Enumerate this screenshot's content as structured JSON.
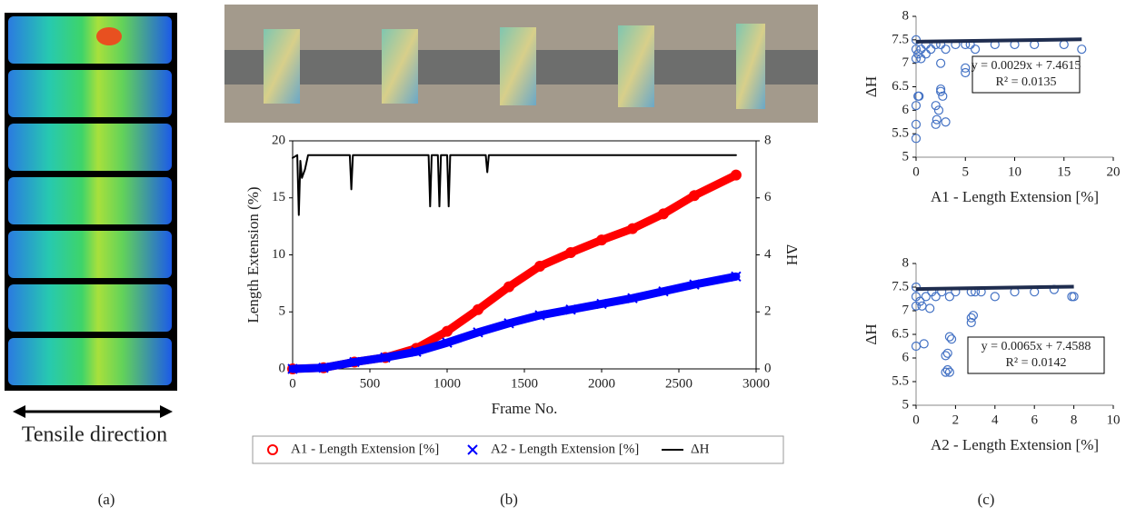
{
  "panel_labels": [
    "(a)",
    "(b)",
    "(c)"
  ],
  "caption_a": "Tensile direction",
  "chart_data": [
    {
      "type": "line",
      "xlabel": "Frame No.",
      "ylabel": "Length Extension (%)",
      "y2label": "ΔH",
      "xlim": [
        0,
        3000
      ],
      "xticks": [
        0,
        500,
        1000,
        1500,
        2000,
        2500,
        3000
      ],
      "ylim": [
        0,
        20
      ],
      "yticks": [
        0,
        5,
        10,
        15,
        20
      ],
      "y2lim": [
        0,
        8
      ],
      "y2ticks": [
        0,
        2,
        4,
        6,
        8
      ],
      "x": [
        0,
        200,
        400,
        600,
        800,
        1000,
        1200,
        1400,
        1600,
        1800,
        2000,
        2200,
        2400,
        2600,
        2870
      ],
      "series": [
        {
          "name": "A1 - Length Extension [%]",
          "color": "#ff0000",
          "marker": "circle",
          "values": [
            0,
            0.1,
            0.6,
            1.0,
            1.8,
            3.3,
            5.2,
            7.2,
            9.0,
            10.2,
            11.3,
            12.3,
            13.6,
            15.2,
            17.0
          ]
        },
        {
          "name": "A2 - Length Extension [%]",
          "color": "#0000ff",
          "marker": "x",
          "values": [
            0,
            0.1,
            0.6,
            1.0,
            1.5,
            2.3,
            3.2,
            4.0,
            4.7,
            5.2,
            5.7,
            6.2,
            6.8,
            7.4,
            8.1
          ]
        },
        {
          "name": "ΔH",
          "color": "#000000",
          "axis": "y2",
          "x": [
            0,
            30,
            40,
            50,
            60,
            80,
            100,
            370,
            380,
            390,
            880,
            890,
            900,
            940,
            950,
            960,
            1000,
            1010,
            1020,
            1250,
            1260,
            1270,
            2870
          ],
          "values": [
            7.4,
            7.5,
            5.4,
            7.3,
            6.7,
            7.0,
            7.5,
            7.5,
            6.3,
            7.5,
            7.5,
            5.7,
            7.5,
            7.5,
            5.7,
            7.5,
            7.5,
            5.7,
            7.5,
            7.5,
            6.9,
            7.5,
            7.5
          ]
        }
      ]
    },
    {
      "type": "scatter",
      "xlabel": "A1 - Length Extension [%]",
      "ylabel": "ΔH",
      "xlim": [
        0,
        20
      ],
      "xticks": [
        0,
        5,
        10,
        15,
        20
      ],
      "ylim": [
        5,
        8
      ],
      "yticks": [
        5,
        5.5,
        6,
        6.5,
        7,
        7.5,
        8
      ],
      "color": "#4472c4",
      "x": [
        0,
        0,
        0,
        0.2,
        0.5,
        1,
        1.5,
        2,
        2.5,
        3,
        4,
        5,
        5.5,
        6,
        8,
        10,
        12,
        15,
        16.8,
        0,
        0,
        0.3,
        2,
        2.1,
        2.3,
        2.5,
        2.7,
        3,
        2,
        2.5,
        5,
        5,
        0,
        0.2,
        0.5,
        1,
        2.5
      ],
      "y": [
        7.5,
        7.3,
        7.1,
        7.2,
        7.3,
        7.4,
        7.3,
        7.4,
        7.4,
        7.3,
        7.4,
        7.4,
        7.4,
        7.3,
        7.4,
        7.4,
        7.4,
        7.4,
        7.3,
        5.4,
        5.7,
        6.3,
        5.7,
        5.8,
        6.0,
        6.4,
        6.3,
        5.75,
        6.1,
        6.45,
        6.8,
        6.9,
        6.1,
        6.3,
        7.1,
        7.2,
        7.0
      ],
      "trendline": {
        "slope": 0.0029,
        "intercept": 7.4615,
        "equation": "y = 0.0029x + 7.4615",
        "r_squared": "R² = 0.0135"
      }
    },
    {
      "type": "scatter",
      "xlabel": "A2 - Length Extension [%]",
      "ylabel": "ΔH",
      "xlim": [
        0,
        10
      ],
      "xticks": [
        0,
        2,
        4,
        6,
        8,
        10
      ],
      "ylim": [
        5,
        8
      ],
      "yticks": [
        5,
        5.5,
        6,
        6.5,
        7,
        7.5,
        8
      ],
      "color": "#4472c4",
      "x": [
        0,
        0,
        0,
        0.2,
        0.5,
        0.8,
        1,
        1.3,
        1.7,
        2,
        2.8,
        3,
        3.3,
        4,
        5,
        6,
        7,
        7.9,
        8,
        0,
        0.4,
        1.5,
        1.6,
        1.7,
        1.5,
        1.6,
        1.8,
        1.7,
        2.8,
        2.8,
        2.9,
        0.3,
        0.7
      ],
      "y": [
        7.5,
        7.3,
        7.1,
        7.2,
        7.3,
        7.4,
        7.3,
        7.4,
        7.3,
        7.4,
        7.4,
        7.4,
        7.4,
        7.3,
        7.4,
        7.4,
        7.45,
        7.3,
        7.3,
        6.25,
        6.3,
        5.7,
        5.75,
        5.7,
        6.05,
        6.1,
        6.4,
        6.45,
        6.75,
        6.85,
        6.9,
        7.1,
        7.05
      ],
      "trendline": {
        "slope": 0.0065,
        "intercept": 7.4588,
        "equation": "y = 0.0065x + 7.4588",
        "r_squared": "R² = 0.0142"
      }
    }
  ]
}
